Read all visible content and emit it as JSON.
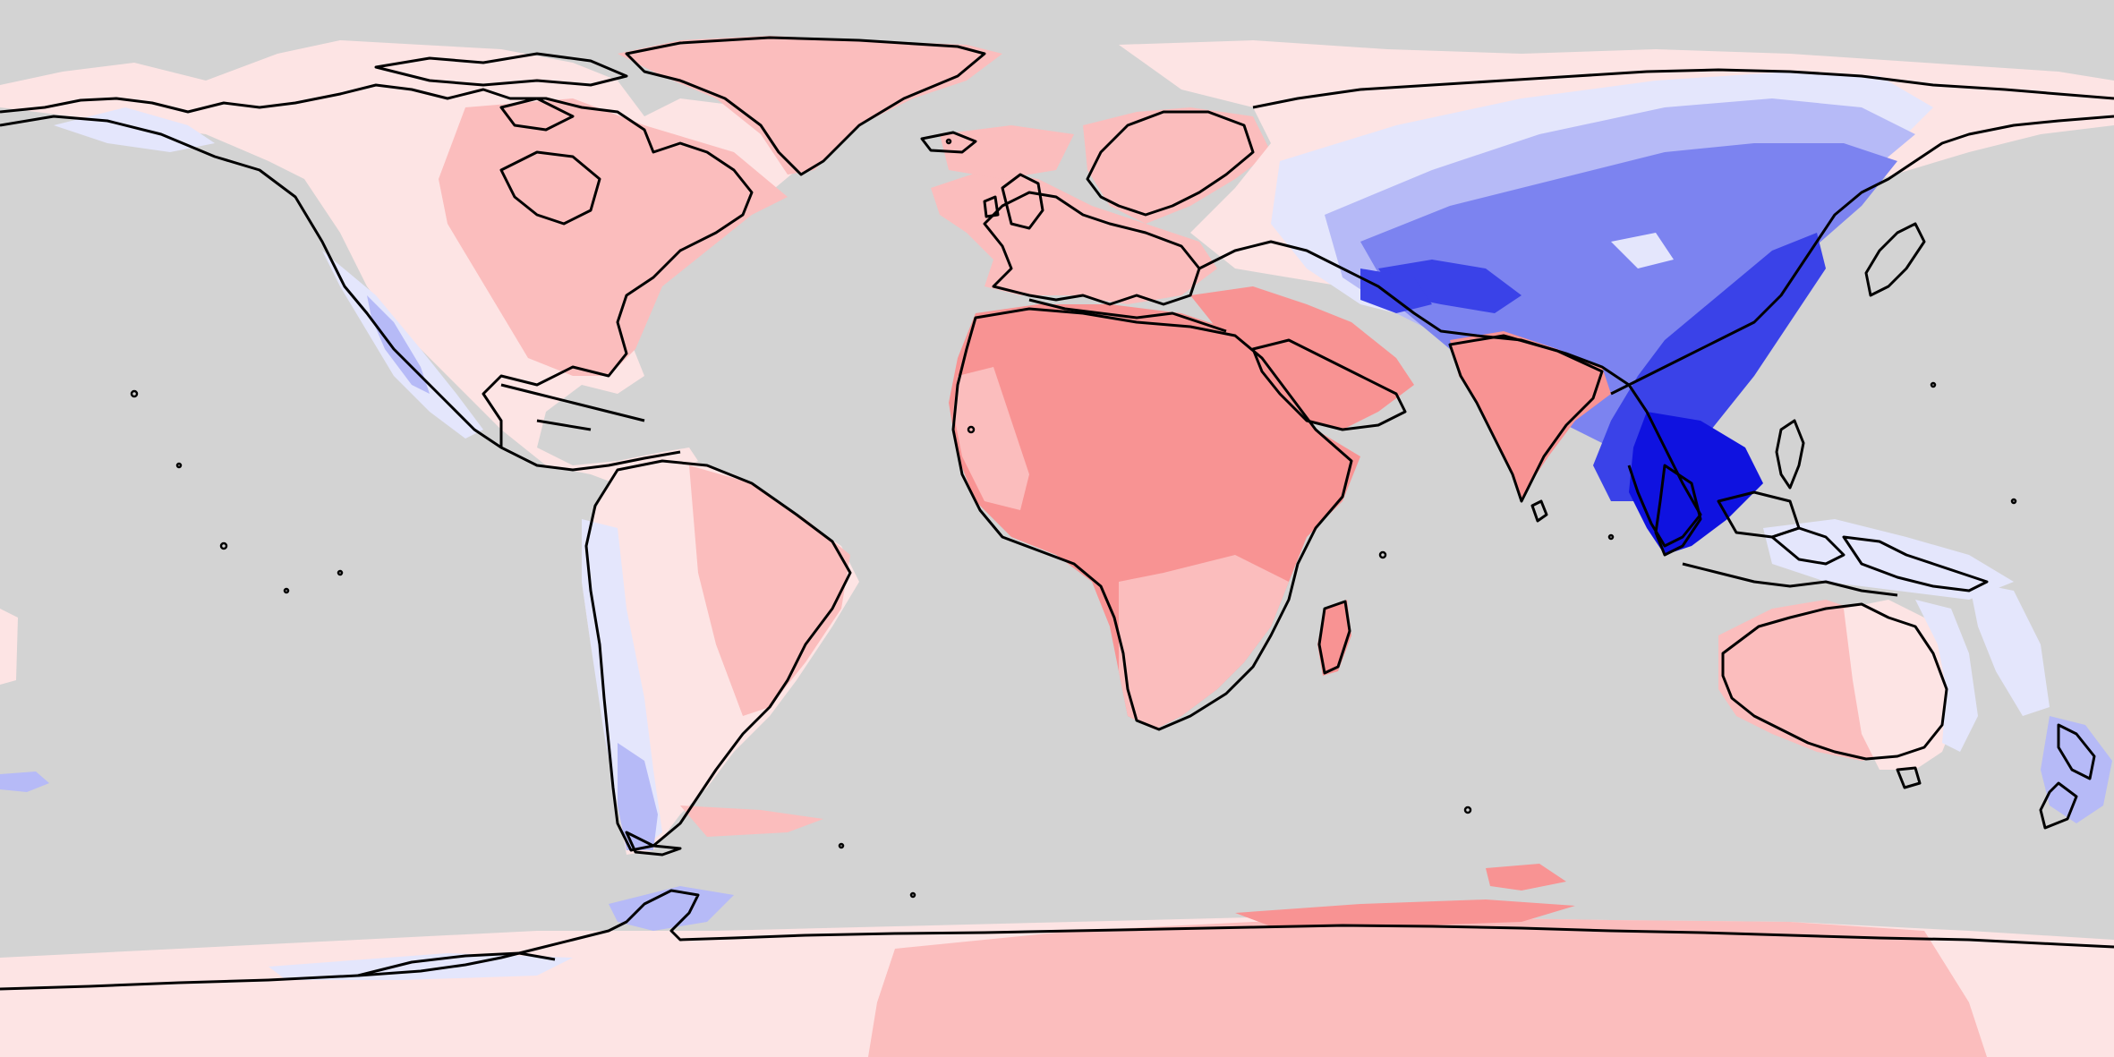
{
  "map": {
    "projection": "equirectangular",
    "background": "#d3d3d3",
    "coastline_color": "#000000",
    "palette": {
      "very_light_red": "#fde4e4",
      "light_red": "#fbbdbd",
      "red": "#f89393",
      "very_light_blue": "#e4e6fc",
      "light_blue": "#b6baf7",
      "blue": "#7c83f0",
      "dark_blue": "#3a42e8",
      "deep_blue": "#0f12e0"
    }
  }
}
